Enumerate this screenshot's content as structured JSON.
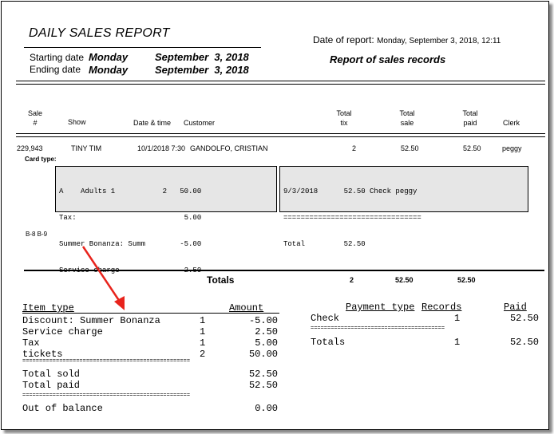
{
  "header": {
    "title": "DAILY SALES REPORT",
    "starting_label": "Starting date",
    "starting_day": "Monday",
    "starting_date": "September  3, 2018",
    "ending_label": "Ending date",
    "ending_day": "Monday",
    "ending_date": "September  3, 2018",
    "date_of_report_label": "Date of report:",
    "date_of_report_value": "Monday, September 3, 2018, 12:11",
    "subtitle": "Report of sales records"
  },
  "columns": {
    "sale_1": "Sale",
    "sale_2": "#",
    "show": "Show",
    "date_time": "Date & time",
    "customer": "Customer",
    "total_tix_1": "Total",
    "total_tix_2": "tix",
    "total_sale_1": "Total",
    "total_sale_2": "sale",
    "total_paid_1": "Total",
    "total_paid_2": "paid",
    "clerk": "Clerk"
  },
  "record": {
    "sale_no": "229,943",
    "show": "TINY TIM",
    "date_time": "10/1/2018 7:30",
    "customer": "GANDOLFO, CRISTIAN",
    "tix": "2",
    "sale": "52.50",
    "paid": "52.50",
    "clerk": "peggy",
    "card_type_label": "Card type:",
    "items": [
      "A    Adults 1           2   50.00",
      "Tax:                         5.00",
      "Summer Bonanza: Summ        -5.00",
      "Service charge               2.50"
    ],
    "payments": [
      "9/3/2018      52.50 Check peggy",
      "================================",
      "Total         52.50"
    ],
    "seats": "B-8 B-9"
  },
  "totals": {
    "label": "Totals",
    "tix": "2",
    "sale": "52.50",
    "paid": "52.50"
  },
  "item_summary": {
    "col_item": "Item type",
    "col_amount": "Amount",
    "rows": [
      {
        "name": "Discount: Summer Bonanza",
        "count": "1",
        "amount": "-5.00"
      },
      {
        "name": "Service charge",
        "count": "1",
        "amount": "2.50"
      },
      {
        "name": "Tax",
        "count": "1",
        "amount": "5.00"
      },
      {
        "name": "tickets",
        "count": "2",
        "amount": "50.00"
      }
    ],
    "separator": "==================================================",
    "total_sold_label": "Total sold",
    "total_sold": "52.50",
    "total_paid_label": "Total paid",
    "total_paid": "52.50",
    "out_of_balance_label": "Out of balance",
    "out_of_balance": "0.00"
  },
  "payment_summary": {
    "col_type": "Payment type",
    "col_records": "Records",
    "col_paid": "Paid",
    "rows": [
      {
        "type": "Check",
        "records": "1",
        "paid": "52.50"
      }
    ],
    "separator": "========================================",
    "totals_label": "Totals",
    "totals_records": "1",
    "totals_paid": "52.50"
  },
  "annotation": {
    "arrow_color": "#e8231c"
  }
}
